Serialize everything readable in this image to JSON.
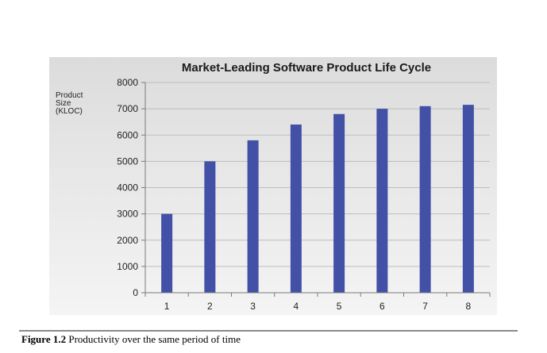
{
  "chart_data": {
    "type": "bar",
    "title": "Market-Leading Software Product Life Cycle",
    "ylabel_lines": [
      "Product",
      "Size",
      "(KLOC)"
    ],
    "xlabel": "",
    "categories": [
      "1",
      "2",
      "3",
      "4",
      "5",
      "6",
      "7",
      "8"
    ],
    "values": [
      3000,
      5000,
      5800,
      6400,
      6800,
      7000,
      7100,
      7150
    ],
    "ylim": [
      0,
      8000
    ],
    "yticks": [
      "0",
      "1000",
      "2000",
      "3000",
      "4000",
      "5000",
      "6000",
      "7000",
      "8000"
    ],
    "grid": true,
    "bar_color": "#4250a6",
    "legend": "none"
  },
  "caption": {
    "label": "Figure 1.2",
    "text": " Productivity over the same period of time"
  }
}
